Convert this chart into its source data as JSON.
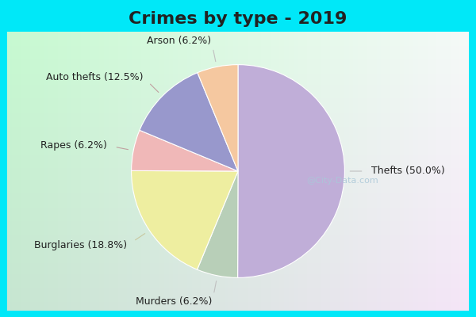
{
  "title": "Crimes by type - 2019",
  "slices": [
    {
      "label": "Thefts",
      "pct": 50.0,
      "color": "#c0aed8"
    },
    {
      "label": "Murders",
      "pct": 6.2,
      "color": "#b8cfb8"
    },
    {
      "label": "Burglaries",
      "pct": 18.8,
      "color": "#eeeea0"
    },
    {
      "label": "Rapes",
      "pct": 6.2,
      "color": "#f0b8b8"
    },
    {
      "label": "Auto thefts",
      "pct": 12.5,
      "color": "#9898cc"
    },
    {
      "label": "Arson",
      "pct": 6.2,
      "color": "#f5c8a0"
    }
  ],
  "border_color": "#00e8f8",
  "border_width": 10,
  "bg_color_inner_tl": "#c8e8d8",
  "bg_color_inner_br": "#e0f0f0",
  "title_fontsize": 16,
  "label_fontsize": 9,
  "watermark": "@City-Data.com",
  "watermark_color": "#aac8d8"
}
